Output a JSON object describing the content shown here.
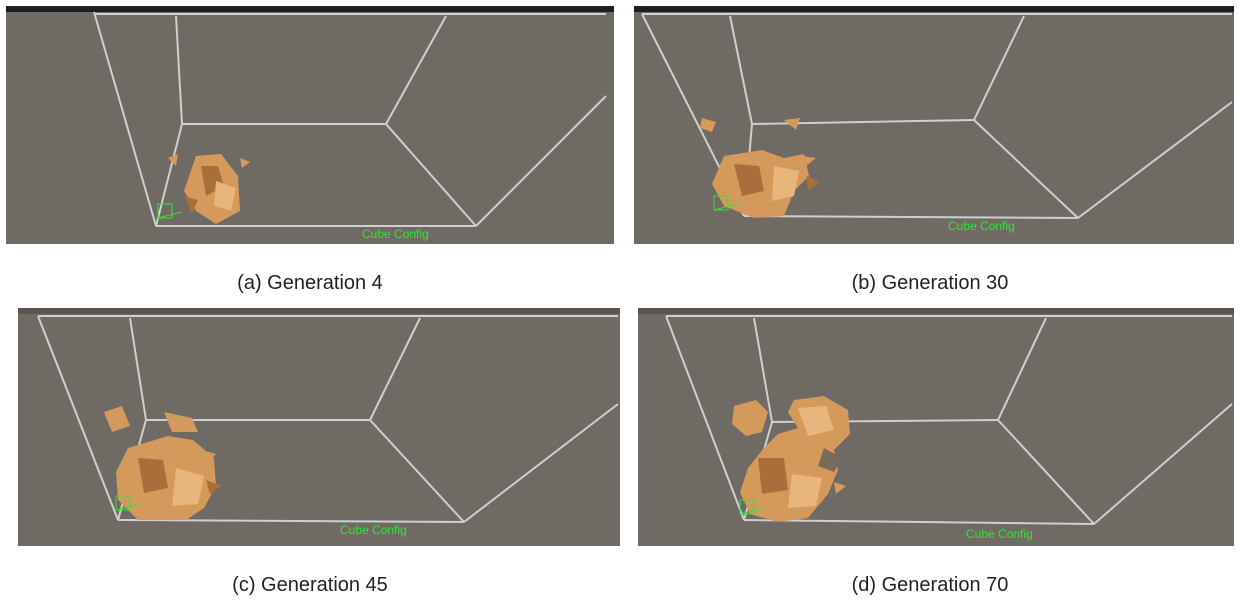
{
  "panels": [
    {
      "caption": "(a) Generation 4",
      "overlay_label": "Cube Config"
    },
    {
      "caption": "(b) Generation 30",
      "overlay_label": "Cube Config"
    },
    {
      "caption": "(c) Generation 45",
      "overlay_label": "Cube Config"
    },
    {
      "caption": "(d) Generation 70",
      "overlay_label": "Cube Config"
    }
  ],
  "colors": {
    "scene_background": "#6f6a64",
    "wireframe": "#cfcfcf",
    "overlay_text": "#35e235",
    "cork": "#d39a5c",
    "cork_dark": "#a86f3a",
    "cork_light": "#e8b57d"
  }
}
